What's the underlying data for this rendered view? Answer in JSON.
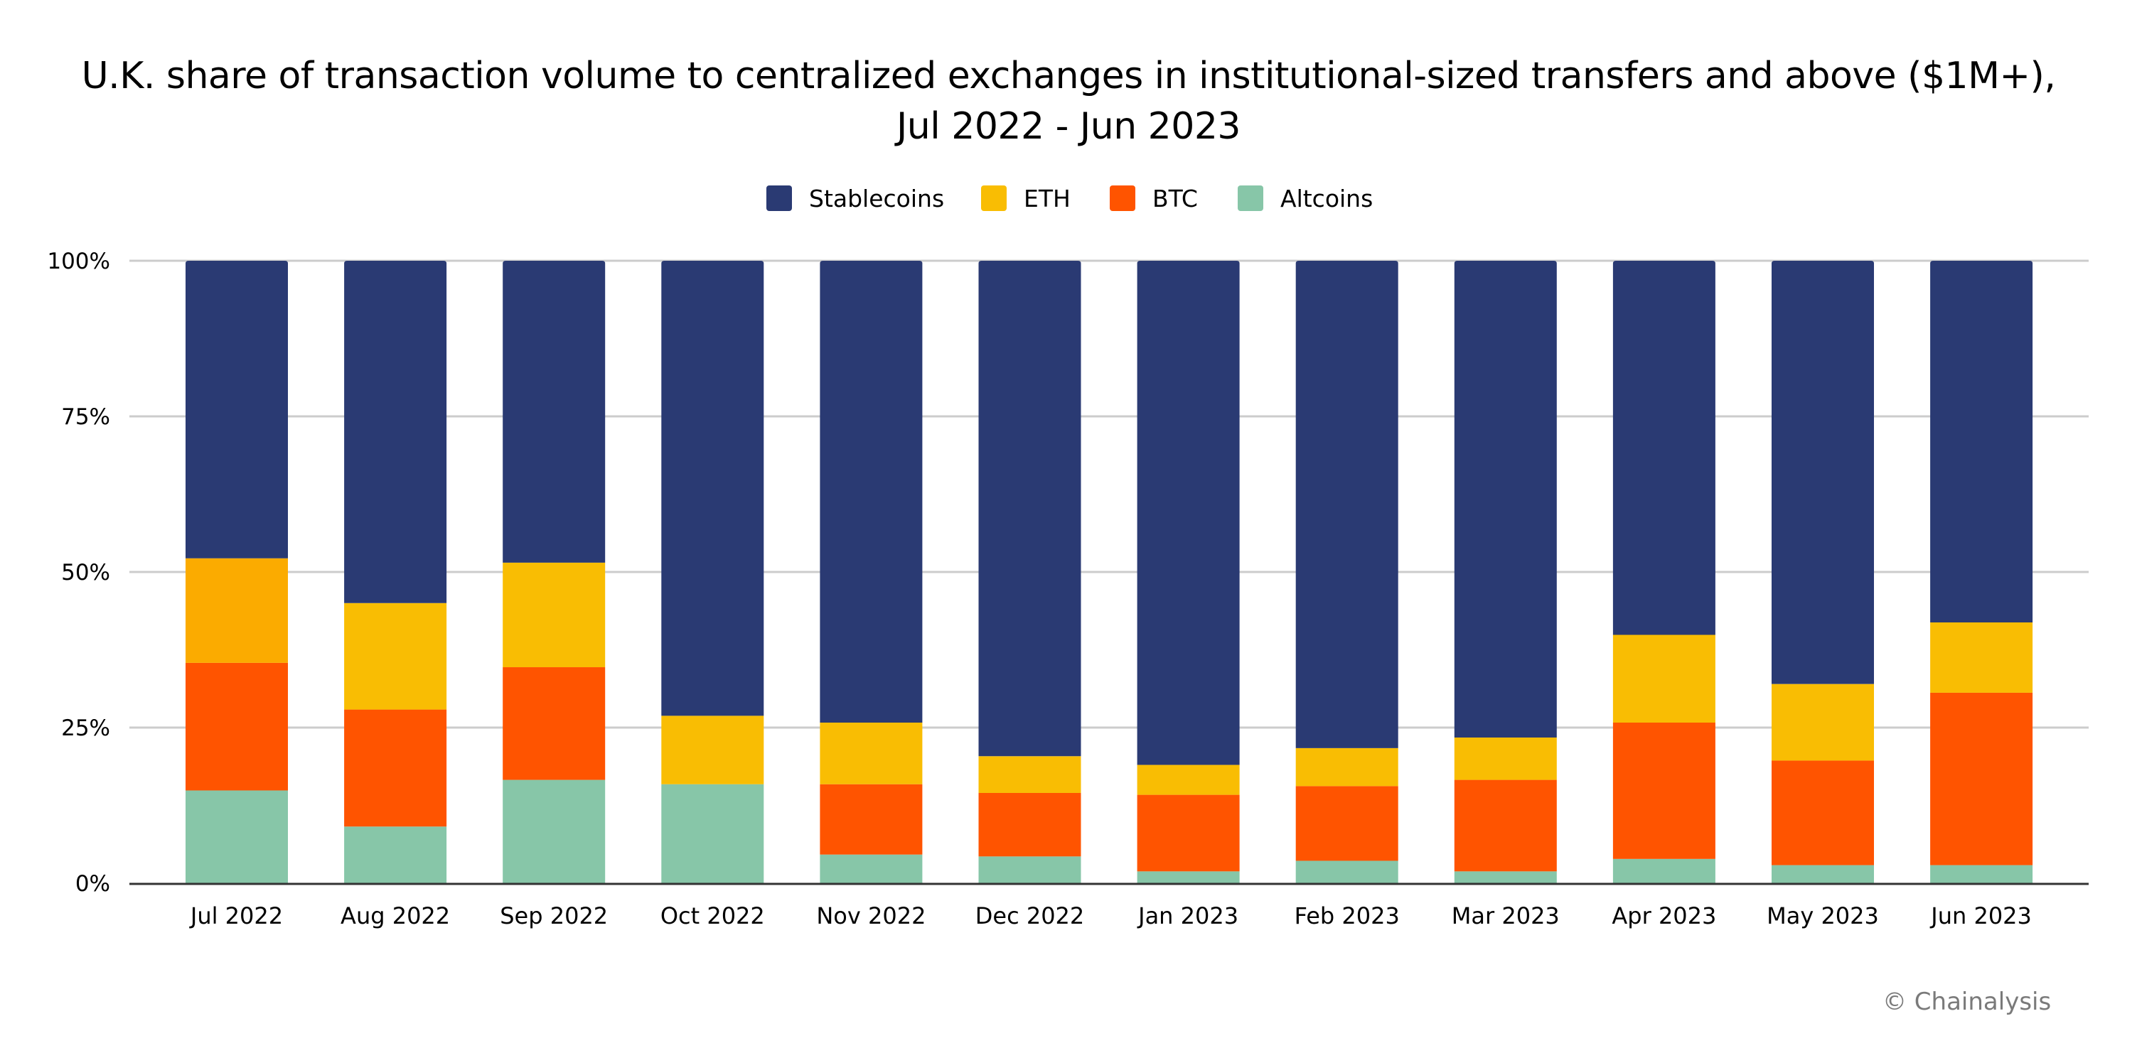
{
  "chart_data": {
    "type": "bar",
    "stacked": true,
    "normalized": true,
    "title": "U.K. share of transaction volume to centralized exchanges in institutional-sized transfers and above ($1M+),",
    "subtitle": "Jul 2022 - Jun 2023",
    "xlabel": "",
    "ylabel": "",
    "ylim": [
      0,
      100
    ],
    "yticks": [
      "0%",
      "25%",
      "50%",
      "75%",
      "100%"
    ],
    "ytick_values": [
      0,
      25,
      50,
      75,
      100
    ],
    "grid": true,
    "legend_position": "top-center",
    "categories": [
      "Jul 2022",
      "Aug 2022",
      "Sep 2022",
      "Oct 2022",
      "Nov 2022",
      "Dec 2022",
      "Jan 2023",
      "Feb 2023",
      "Mar 2023",
      "Apr 2023",
      "May 2023",
      "Jun 2023"
    ],
    "series": [
      {
        "name": "Altcoins",
        "color": "#87c6a8",
        "values": [
          14.9,
          9.1,
          16.6,
          15.9,
          4.6,
          4.3,
          1.9,
          3.6,
          1.9,
          3.9,
          2.9,
          2.9
        ]
      },
      {
        "name": "BTC",
        "color": "#ff5400",
        "values": [
          20.5,
          18.8,
          18.1,
          0.0,
          11.3,
          10.2,
          12.3,
          12.0,
          14.7,
          21.9,
          16.8,
          27.7
        ]
      },
      {
        "name": "ETH",
        "color": "#f9bd03",
        "values": [
          16.8,
          17.1,
          16.8,
          11.0,
          9.9,
          5.9,
          4.8,
          6.1,
          6.8,
          14.1,
          12.3,
          11.3
        ]
      },
      {
        "name": "Stablecoins",
        "color": "#2a3a73",
        "values": [
          47.8,
          55.0,
          48.5,
          73.1,
          74.2,
          79.6,
          81.0,
          78.3,
          76.6,
          60.1,
          68.0,
          58.1
        ]
      }
    ],
    "legend_order": [
      "Stablecoins",
      "ETH",
      "BTC",
      "Altcoins"
    ],
    "jul_eth_color": "#fbab00"
  },
  "footer": {
    "credit": "© Chainalysis"
  }
}
